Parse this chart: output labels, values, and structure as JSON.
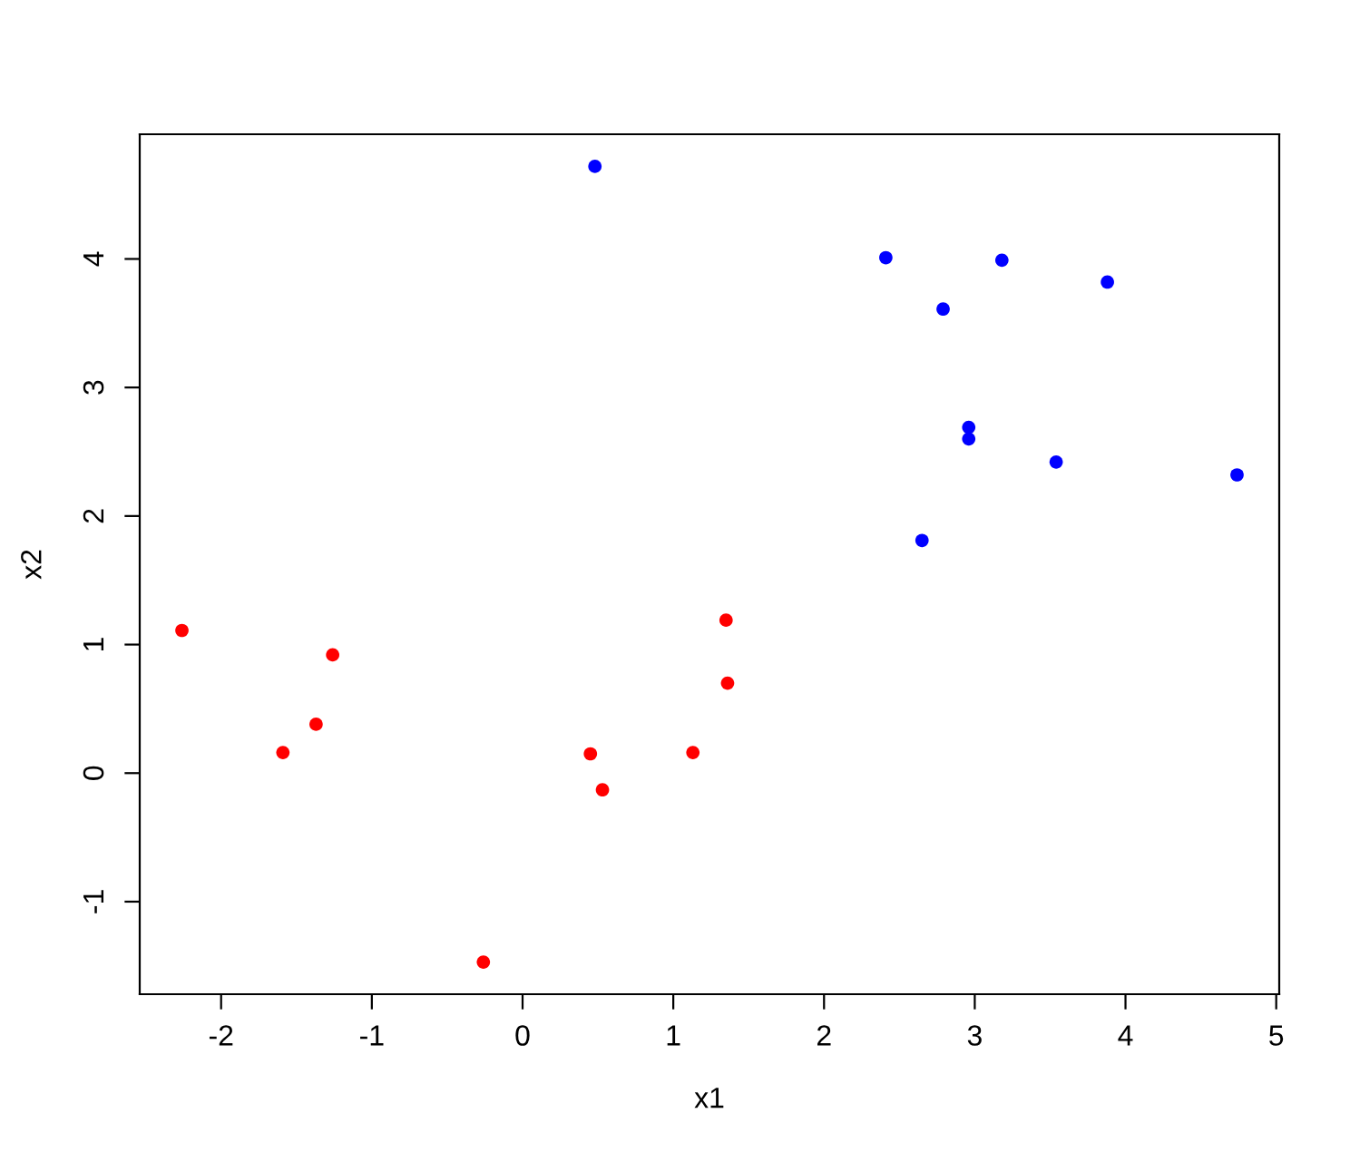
{
  "chart_data": {
    "type": "scatter",
    "xlabel": "x1",
    "ylabel": "x2",
    "xlim": [
      -2.54,
      5.02
    ],
    "ylim": [
      -1.72,
      4.97
    ],
    "xticks": [
      -2,
      -1,
      0,
      1,
      2,
      3,
      4,
      5
    ],
    "yticks": [
      {
        "value": -1,
        "label": "-1"
      },
      0,
      1,
      2,
      3,
      4
    ],
    "marker": "circle",
    "grid": false,
    "series": [
      {
        "color": "#ff0000",
        "x": [
          -2.26,
          -1.59,
          -1.37,
          -1.26,
          -0.26,
          0.45,
          0.53,
          1.13,
          1.35,
          1.36
        ],
        "values": [
          1.11,
          0.16,
          0.38,
          0.92,
          -1.47,
          0.15,
          -0.13,
          0.16,
          1.19,
          0.7
        ]
      },
      {
        "color": "#0000ff",
        "x": [
          0.48,
          2.41,
          2.79,
          3.18,
          3.88,
          2.96,
          2.96,
          3.54,
          4.74,
          2.65
        ],
        "values": [
          4.72,
          4.01,
          3.61,
          3.99,
          3.82,
          2.69,
          2.6,
          2.42,
          2.32,
          1.81
        ]
      }
    ]
  }
}
